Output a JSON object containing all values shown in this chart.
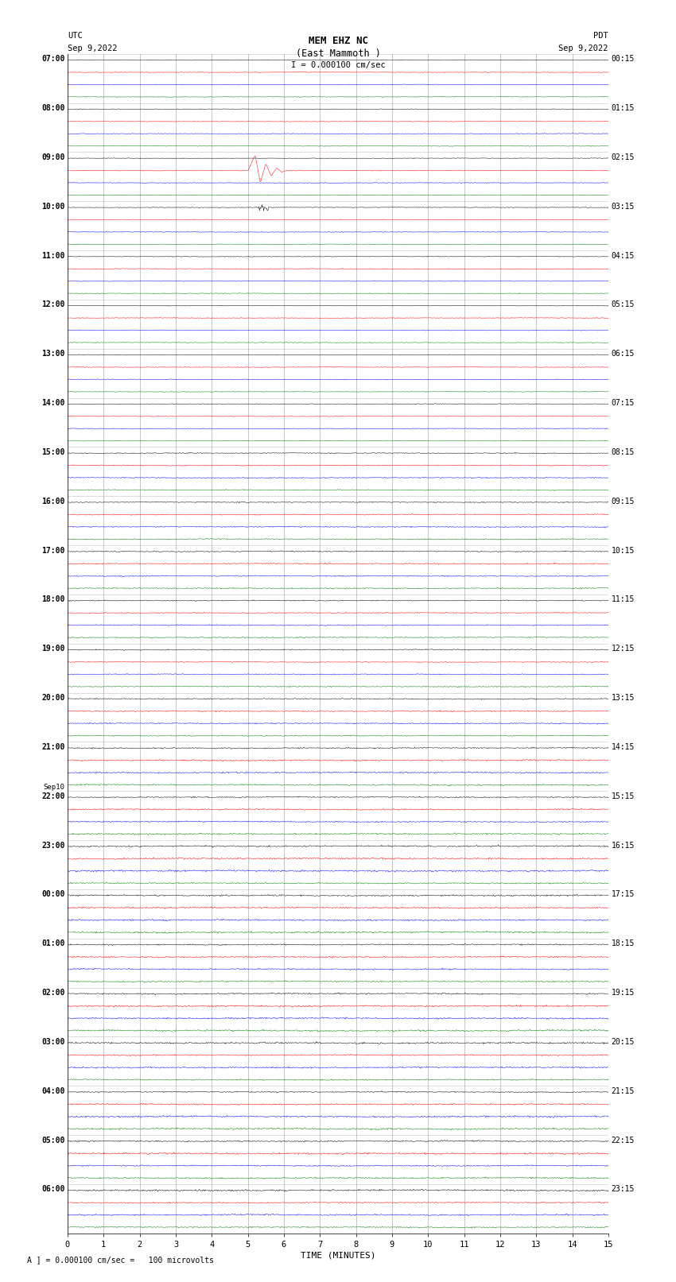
{
  "title_line1": "MEM EHZ NC",
  "title_line2": "(East Mammoth )",
  "scale_label": "I = 0.000100 cm/sec",
  "utc_label": "UTC",
  "utc_date": "Sep 9,2022",
  "pdt_label": "PDT",
  "pdt_date": "Sep 9,2022",
  "xlabel": "TIME (MINUTES)",
  "footer": "A ] = 0.000100 cm/sec =   100 microvolts",
  "left_times": [
    "07:00",
    "08:00",
    "09:00",
    "10:00",
    "11:00",
    "12:00",
    "13:00",
    "14:00",
    "15:00",
    "16:00",
    "17:00",
    "18:00",
    "19:00",
    "20:00",
    "21:00",
    "22:00",
    "23:00",
    "Sep10\n00:00",
    "01:00",
    "02:00",
    "03:00",
    "04:00",
    "05:00",
    "06:00"
  ],
  "right_times": [
    "00:15",
    "01:15",
    "02:15",
    "03:15",
    "04:15",
    "05:15",
    "06:15",
    "07:15",
    "08:15",
    "09:15",
    "10:15",
    "11:15",
    "12:15",
    "13:15",
    "14:15",
    "15:15",
    "16:15",
    "17:15",
    "18:15",
    "19:15",
    "20:15",
    "21:15",
    "22:15",
    "23:15"
  ],
  "colors": [
    "black",
    "red",
    "blue",
    "green"
  ],
  "n_hours": 24,
  "n_traces_per_hour": 4,
  "x_min": 0,
  "x_max": 15,
  "x_ticks": [
    0,
    1,
    2,
    3,
    4,
    5,
    6,
    7,
    8,
    9,
    10,
    11,
    12,
    13,
    14,
    15
  ],
  "bg_color": "white",
  "grid_color": "#999999",
  "noise_scale": 0.012,
  "sep10_hour": 16
}
